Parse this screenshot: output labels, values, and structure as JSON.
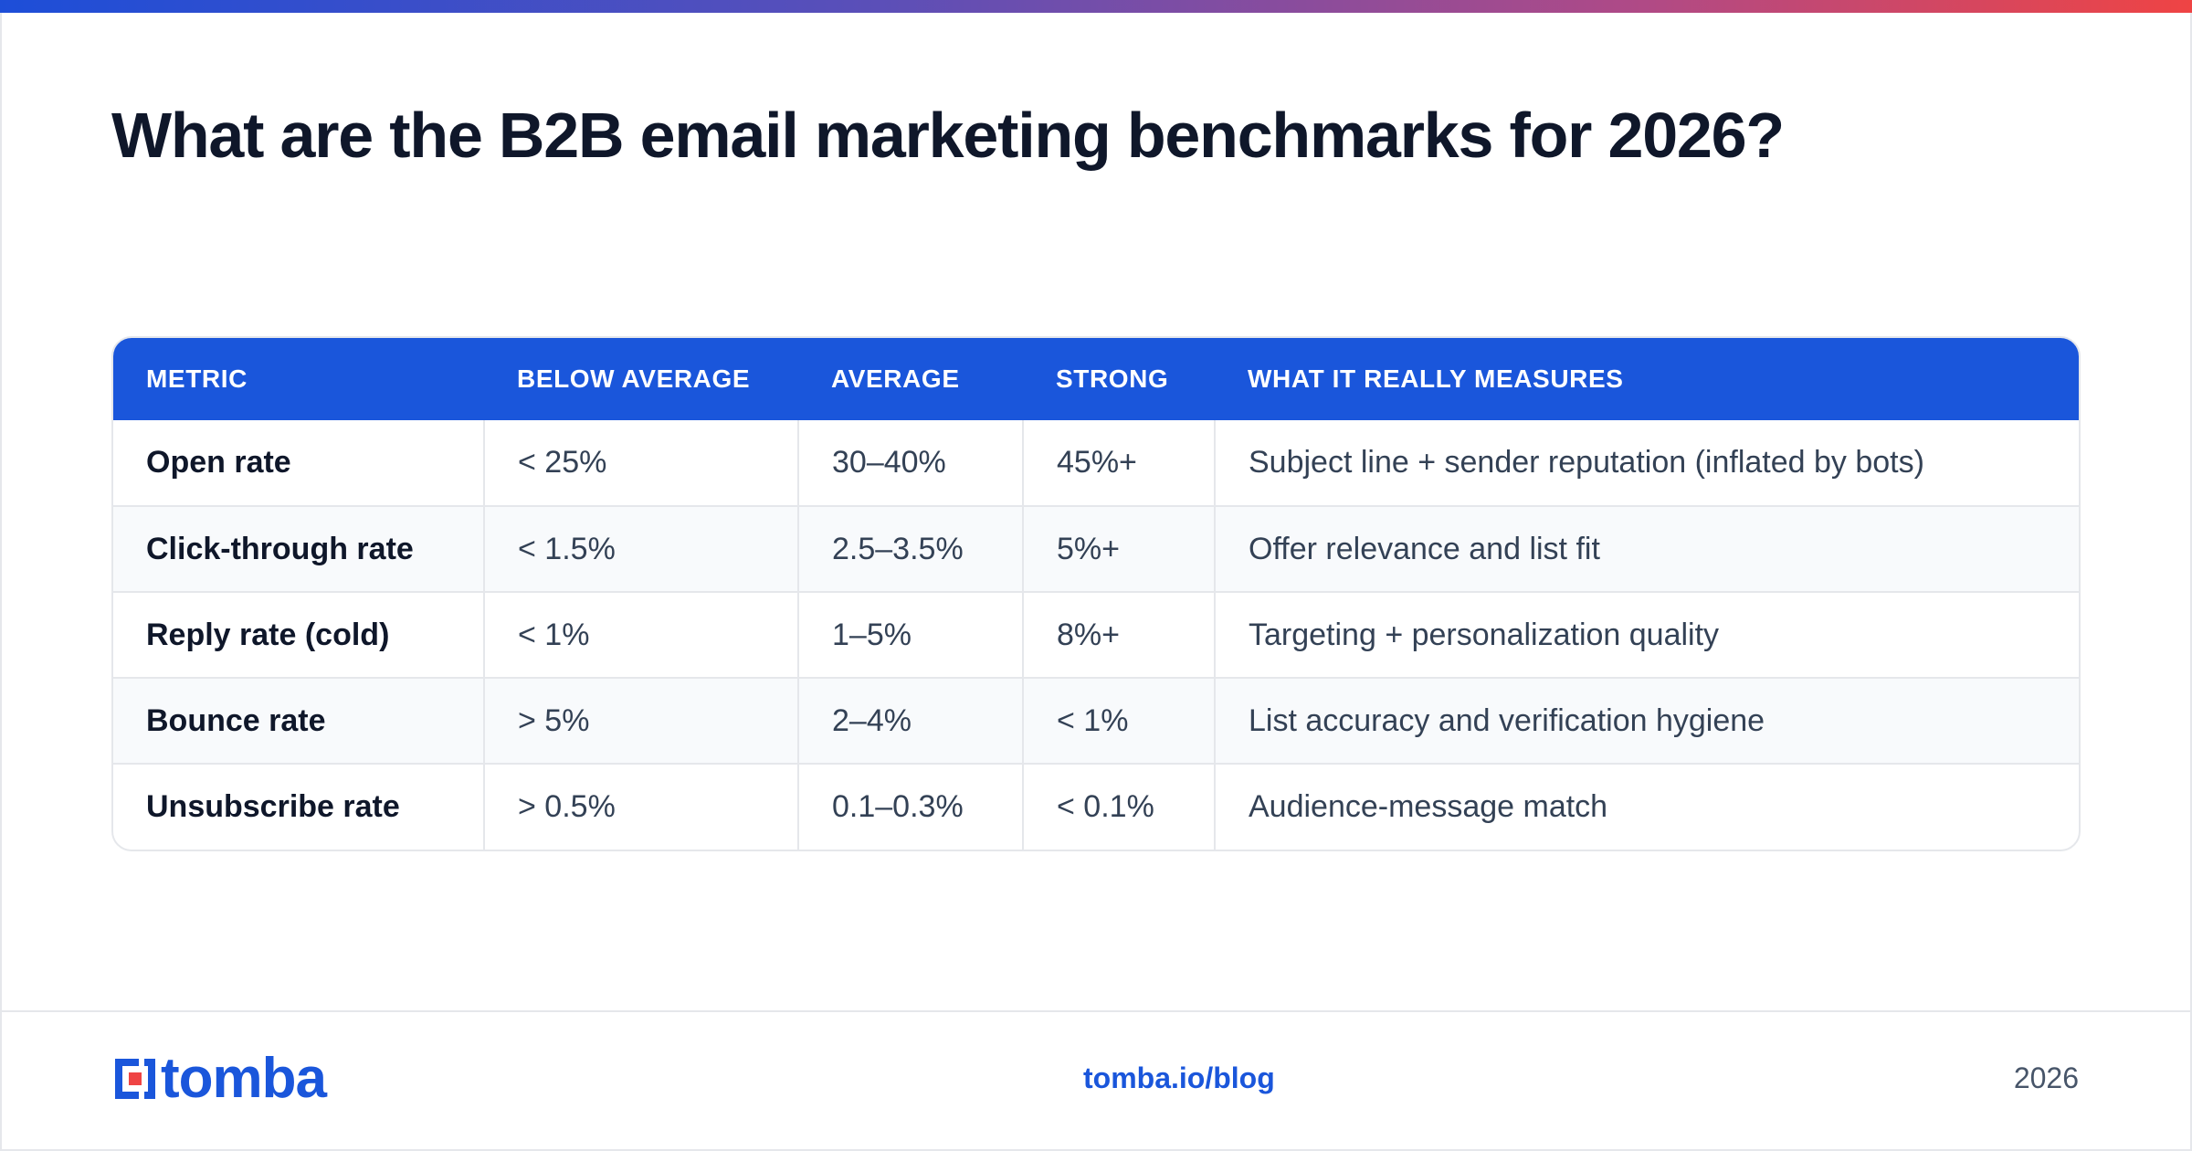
{
  "title": "What are the B2B email marketing benchmarks for 2026?",
  "table": {
    "headers": [
      "METRIC",
      "BELOW AVERAGE",
      "AVERAGE",
      "STRONG",
      "WHAT IT REALLY MEASURES"
    ],
    "rows": [
      [
        "Open rate",
        "< 25%",
        "30–40%",
        "45%+",
        "Subject line + sender reputation (inflated by bots)"
      ],
      [
        "Click-through rate",
        "< 1.5%",
        "2.5–3.5%",
        "5%+",
        "Offer relevance and list fit"
      ],
      [
        "Reply rate (cold)",
        "< 1%",
        "1–5%",
        "8%+",
        "Targeting + personalization quality"
      ],
      [
        "Bounce rate",
        "> 5%",
        "2–4%",
        "< 1%",
        "List accuracy and verification hygiene"
      ],
      [
        "Unsubscribe rate",
        "> 0.5%",
        "0.1–0.3%",
        "< 0.1%",
        "Audience-message match"
      ]
    ]
  },
  "footer": {
    "logo_text": "tomba",
    "logo_icon": "tomba-logo-icon",
    "link": "tomba.io/blog",
    "year": "2026"
  },
  "colors": {
    "brand_blue": "#1a56db",
    "gradient_start": "#1d4ed8",
    "gradient_end": "#ef4444",
    "logo_accent": "#ef4444"
  }
}
